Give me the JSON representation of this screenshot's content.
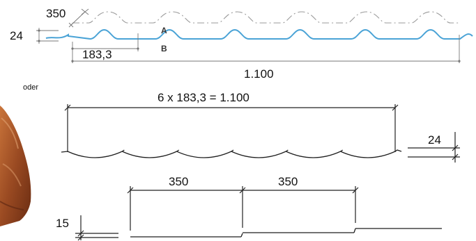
{
  "labels": {
    "top_height": "24",
    "top_350": "350",
    "top_pitch": "183,3",
    "top_width": "1.100",
    "curve_a": "A",
    "curve_b": "B",
    "oder": "oder",
    "mid_formula": "6 x 183,3 = 1.100",
    "mid_height": "24",
    "bottom_step_1": "350",
    "bottom_step_2": "350",
    "bottom_height": "15"
  },
  "colors": {
    "profile_blue": "#4aa3d6",
    "profile_dashdot": "#9a9a9a",
    "lines": "#222222",
    "tile_brown": "#9a4a22"
  }
}
